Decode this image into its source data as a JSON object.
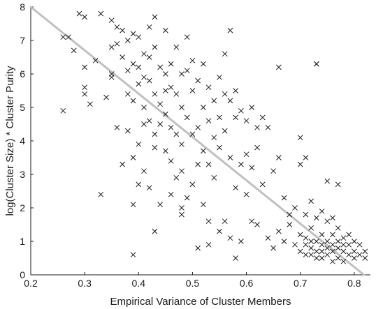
{
  "chart_data": {
    "type": "scatter",
    "title": "",
    "xlabel": "Empirical Variance of Cluster Members",
    "ylabel": "log(Cluster Size) * Cluster Purity",
    "xlim": [
      0.2,
      0.83
    ],
    "ylim": [
      0,
      8
    ],
    "xticks": [
      "0.2",
      "0.3",
      "0.4",
      "0.5",
      "0.6",
      "0.7",
      "0.8"
    ],
    "yticks": [
      "0",
      "1",
      "2",
      "3",
      "4",
      "5",
      "6",
      "7",
      "8"
    ],
    "grid": false,
    "legend": "none",
    "marker": "x",
    "colors": {
      "points": "#1a1a1a",
      "trend_line": "#c0c0c0",
      "axis": "#1a1a1a"
    },
    "trend_line": {
      "x": [
        0.2,
        0.818
      ],
      "y": [
        8.0,
        0.0
      ]
    },
    "series": [
      {
        "x": [
          0.26,
          0.26,
          0.27,
          0.28,
          0.29,
          0.3,
          0.3,
          0.3,
          0.3,
          0.31,
          0.32,
          0.33,
          0.33,
          0.34,
          0.35,
          0.35,
          0.35,
          0.35,
          0.36,
          0.36,
          0.36,
          0.37,
          0.37,
          0.37,
          0.38,
          0.38,
          0.38,
          0.38,
          0.39,
          0.39,
          0.39,
          0.39,
          0.39,
          0.4,
          0.4,
          0.4,
          0.4,
          0.4,
          0.41,
          0.41,
          0.41,
          0.41,
          0.41,
          0.42,
          0.42,
          0.42,
          0.42,
          0.42,
          0.43,
          0.43,
          0.43,
          0.43,
          0.43,
          0.44,
          0.44,
          0.44,
          0.44,
          0.45,
          0.45,
          0.45,
          0.45,
          0.45,
          0.46,
          0.46,
          0.46,
          0.46,
          0.46,
          0.47,
          0.47,
          0.47,
          0.47,
          0.48,
          0.48,
          0.48,
          0.48,
          0.48,
          0.49,
          0.49,
          0.49,
          0.49,
          0.5,
          0.5,
          0.5,
          0.5,
          0.51,
          0.51,
          0.51,
          0.51,
          0.52,
          0.52,
          0.52,
          0.52,
          0.53,
          0.53,
          0.53,
          0.53,
          0.54,
          0.54,
          0.54,
          0.55,
          0.55,
          0.55,
          0.55,
          0.56,
          0.56,
          0.56,
          0.56,
          0.57,
          0.57,
          0.57,
          0.57,
          0.58,
          0.58,
          0.58,
          0.59,
          0.59,
          0.59,
          0.6,
          0.6,
          0.6,
          0.61,
          0.61,
          0.61,
          0.62,
          0.62,
          0.62,
          0.63,
          0.63,
          0.64,
          0.64,
          0.65,
          0.65,
          0.66,
          0.66,
          0.67,
          0.67,
          0.68,
          0.68,
          0.69,
          0.69,
          0.7,
          0.7,
          0.7,
          0.7,
          0.71,
          0.71,
          0.71,
          0.71,
          0.71,
          0.72,
          0.72,
          0.72,
          0.72,
          0.72,
          0.73,
          0.73,
          0.73,
          0.73,
          0.73,
          0.74,
          0.74,
          0.74,
          0.74,
          0.74,
          0.75,
          0.75,
          0.75,
          0.75,
          0.75,
          0.76,
          0.76,
          0.76,
          0.76,
          0.76,
          0.77,
          0.77,
          0.77,
          0.77,
          0.78,
          0.78,
          0.78,
          0.78,
          0.79,
          0.79,
          0.79,
          0.8,
          0.8,
          0.8,
          0.81,
          0.81,
          0.82,
          0.82,
          0.39,
          0.43,
          0.48,
          0.53,
          0.58,
          0.66,
          0.73,
          0.77
        ],
        "y": [
          7.1,
          4.9,
          7.1,
          6.7,
          7.8,
          7.7,
          6.2,
          5.6,
          5.4,
          5.1,
          6.4,
          7.8,
          2.4,
          5.3,
          7.6,
          6.8,
          6.0,
          5.9,
          7.4,
          6.9,
          4.4,
          7.3,
          6.5,
          3.3,
          7.0,
          6.1,
          5.4,
          4.3,
          7.2,
          6.3,
          5.2,
          3.5,
          2.1,
          7.1,
          6.2,
          5.7,
          3.9,
          2.7,
          6.6,
          5.9,
          5.0,
          4.5,
          3.1,
          7.4,
          6.5,
          5.8,
          4.6,
          2.6,
          7.7,
          6.8,
          5.4,
          4.2,
          3.8,
          6.2,
          5.1,
          4.5,
          2.1,
          7.3,
          6.0,
          5.5,
          4.8,
          3.7,
          6.3,
          5.6,
          4.4,
          3.4,
          2.4,
          6.8,
          5.4,
          4.2,
          2.9,
          6.0,
          5.0,
          3.9,
          3.1,
          1.8,
          7.1,
          6.1,
          4.7,
          2.3,
          6.4,
          5.5,
          4.2,
          2.7,
          5.8,
          4.4,
          3.3,
          0.8,
          6.3,
          5.0,
          3.7,
          2.1,
          5.6,
          4.6,
          3.3,
          1.6,
          5.2,
          4.1,
          2.9,
          5.9,
          4.7,
          3.8,
          1.3,
          6.6,
          5.4,
          4.3,
          1.6,
          7.3,
          5.2,
          3.5,
          1.1,
          5.5,
          4.7,
          2.6,
          4.9,
          3.3,
          1.0,
          4.6,
          3.6,
          2.4,
          5.0,
          3.2,
          1.6,
          4.4,
          3.8,
          1.5,
          4.7,
          2.7,
          4.4,
          1.1,
          3.1,
          0.8,
          3.5,
          1.3,
          2.3,
          1.0,
          1.8,
          1.5,
          2.0,
          0.9,
          4.1,
          3.3,
          1.2,
          0.7,
          3.5,
          1.8,
          1.1,
          0.9,
          0.6,
          2.2,
          1.4,
          1.0,
          0.8,
          0.6,
          6.3,
          1.7,
          1.0,
          0.7,
          0.5,
          1.9,
          1.2,
          0.9,
          0.7,
          0.5,
          2.8,
          1.6,
          1.0,
          0.8,
          0.6,
          1.7,
          1.2,
          0.9,
          0.7,
          0.4,
          1.4,
          1.0,
          0.8,
          0.5,
          1.1,
          0.9,
          0.7,
          0.4,
          1.2,
          0.9,
          0.6,
          1.0,
          0.7,
          0.5,
          0.9,
          0.6,
          0.7,
          0.5,
          0.6,
          1.3,
          2.0,
          0.9,
          0.5,
          6.2,
          6.3,
          2.7
        ]
      }
    ]
  }
}
